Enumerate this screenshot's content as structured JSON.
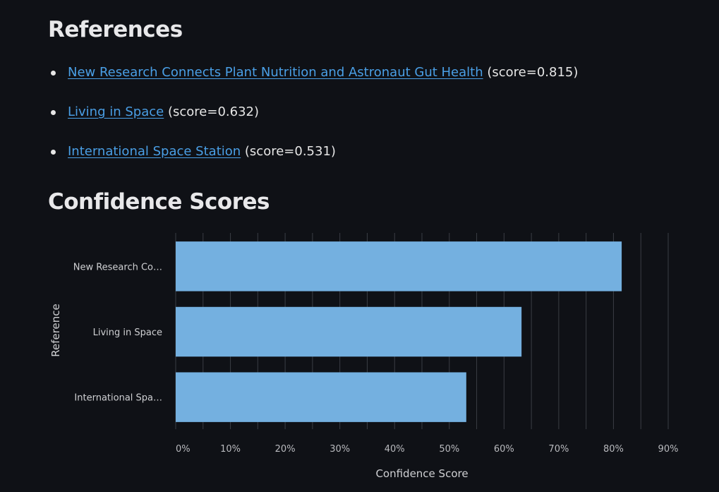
{
  "references": {
    "title": "References",
    "items": [
      {
        "link": "New Research Connects Plant Nutrition and Astronaut Gut Health",
        "score_text": "(score=0.815)"
      },
      {
        "link": "Living in Space",
        "score_text": "(score=0.632)"
      },
      {
        "link": "International Space Station",
        "score_text": "(score=0.531)"
      }
    ]
  },
  "confidence": {
    "title": "Confidence Scores"
  },
  "colors": {
    "background": "#0f1116",
    "bar": "#74b0e0",
    "link": "#4a9fe6",
    "grid": "#3a3d44"
  },
  "chart_data": {
    "type": "bar",
    "orientation": "horizontal",
    "title": "Confidence Scores",
    "categories": [
      "New Research Co…",
      "Living in Space",
      "International Spa…"
    ],
    "values": [
      0.815,
      0.632,
      0.531
    ],
    "xlabel": "Confidence Score",
    "ylabel": "Reference",
    "xlim": [
      0,
      0.9
    ],
    "xticks": [
      0,
      0.1,
      0.2,
      0.3,
      0.4,
      0.5,
      0.6,
      0.7,
      0.8,
      0.9
    ],
    "xtick_labels": [
      "0%",
      "10%",
      "20%",
      "30%",
      "40%",
      "50%",
      "60%",
      "70%",
      "80%",
      "90%"
    ],
    "grid": true
  }
}
